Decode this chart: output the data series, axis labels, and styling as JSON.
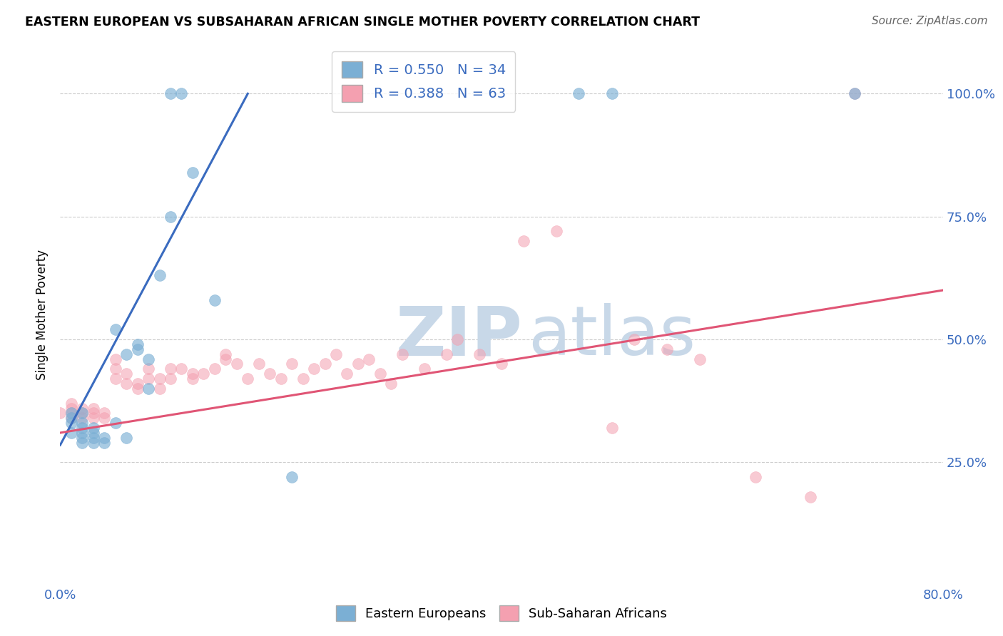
{
  "title": "EASTERN EUROPEAN VS SUBSAHARAN AFRICAN SINGLE MOTHER POVERTY CORRELATION CHART",
  "source": "Source: ZipAtlas.com",
  "xlabel": "",
  "ylabel": "Single Mother Poverty",
  "xlim": [
    0.0,
    0.8
  ],
  "ylim": [
    0.0,
    1.1
  ],
  "xticks": [
    0.0,
    0.2,
    0.4,
    0.6,
    0.8
  ],
  "xticklabels": [
    "0.0%",
    "",
    "",
    "",
    "80.0%"
  ],
  "ytick_positions": [
    0.25,
    0.5,
    0.75,
    1.0
  ],
  "ytick_labels": [
    "25.0%",
    "50.0%",
    "75.0%",
    "100.0%"
  ],
  "grid_color": "#cccccc",
  "background_color": "#ffffff",
  "blue_color": "#7bafd4",
  "pink_color": "#f4a0b0",
  "blue_line_color": "#3a6bbf",
  "pink_line_color": "#e05575",
  "legend_text_color": "#3a6bbf",
  "legend_R_blue": "R = 0.550",
  "legend_N_blue": "N = 34",
  "legend_R_pink": "R = 0.388",
  "legend_N_pink": "N = 63",
  "label_blue": "Eastern Europeans",
  "label_pink": "Sub-Saharan Africans",
  "watermark_text": "ZIP",
  "watermark_text2": "atlas",
  "blue_line_x": [
    0.0,
    0.17
  ],
  "blue_line_y": [
    0.285,
    1.0
  ],
  "pink_line_x": [
    0.0,
    0.8
  ],
  "pink_line_y": [
    0.31,
    0.6
  ],
  "blue_x": [
    0.01,
    0.01,
    0.01,
    0.02,
    0.02,
    0.02,
    0.02,
    0.02,
    0.03,
    0.03,
    0.03,
    0.04,
    0.04,
    0.05,
    0.06,
    0.07,
    0.07,
    0.08,
    0.08,
    0.09,
    0.1,
    0.1,
    0.11,
    0.12,
    0.14,
    0.21,
    0.47,
    0.5,
    0.72,
    0.01,
    0.02,
    0.03,
    0.05,
    0.06
  ],
  "blue_y": [
    0.33,
    0.34,
    0.35,
    0.29,
    0.3,
    0.31,
    0.32,
    0.35,
    0.29,
    0.3,
    0.31,
    0.29,
    0.3,
    0.52,
    0.3,
    0.48,
    0.49,
    0.46,
    0.4,
    0.63,
    0.75,
    1.0,
    1.0,
    0.84,
    0.58,
    0.22,
    1.0,
    1.0,
    1.0,
    0.31,
    0.33,
    0.32,
    0.33,
    0.47
  ],
  "pink_x": [
    0.0,
    0.01,
    0.01,
    0.01,
    0.01,
    0.02,
    0.02,
    0.02,
    0.03,
    0.03,
    0.03,
    0.04,
    0.04,
    0.05,
    0.05,
    0.05,
    0.06,
    0.06,
    0.07,
    0.07,
    0.08,
    0.08,
    0.09,
    0.09,
    0.1,
    0.1,
    0.11,
    0.12,
    0.12,
    0.13,
    0.14,
    0.15,
    0.15,
    0.16,
    0.17,
    0.18,
    0.19,
    0.2,
    0.21,
    0.22,
    0.23,
    0.24,
    0.25,
    0.26,
    0.27,
    0.28,
    0.29,
    0.3,
    0.31,
    0.33,
    0.35,
    0.36,
    0.38,
    0.4,
    0.42,
    0.45,
    0.5,
    0.52,
    0.55,
    0.58,
    0.63,
    0.68,
    0.72
  ],
  "pink_y": [
    0.35,
    0.34,
    0.35,
    0.36,
    0.37,
    0.34,
    0.35,
    0.36,
    0.34,
    0.35,
    0.36,
    0.34,
    0.35,
    0.42,
    0.44,
    0.46,
    0.41,
    0.43,
    0.4,
    0.41,
    0.42,
    0.44,
    0.4,
    0.42,
    0.42,
    0.44,
    0.44,
    0.42,
    0.43,
    0.43,
    0.44,
    0.46,
    0.47,
    0.45,
    0.42,
    0.45,
    0.43,
    0.42,
    0.45,
    0.42,
    0.44,
    0.45,
    0.47,
    0.43,
    0.45,
    0.46,
    0.43,
    0.41,
    0.47,
    0.44,
    0.47,
    0.5,
    0.47,
    0.45,
    0.7,
    0.72,
    0.32,
    0.5,
    0.48,
    0.46,
    0.22,
    0.18,
    1.0
  ]
}
